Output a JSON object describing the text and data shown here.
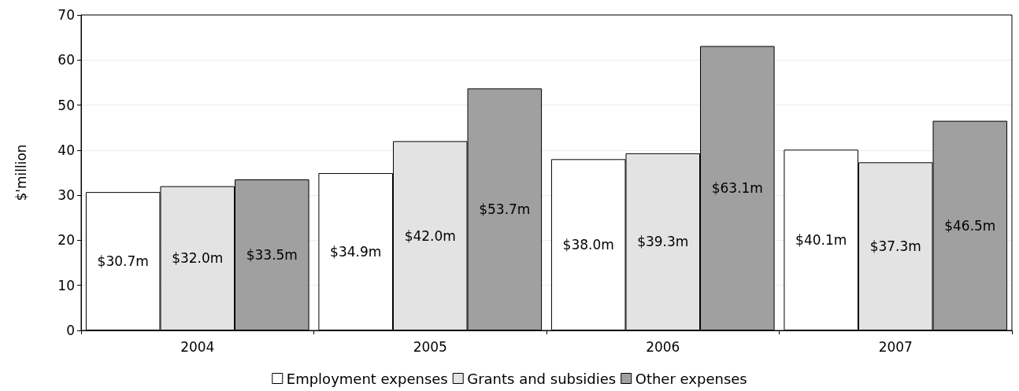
{
  "chart_data": {
    "type": "bar",
    "ylabel": "$'million",
    "categories": [
      "2004",
      "2005",
      "2006",
      "2007"
    ],
    "series": [
      {
        "name": "Employment expenses",
        "color": "#ffffff",
        "values": [
          30.7,
          34.9,
          38.0,
          40.1
        ],
        "value_labels": [
          "$30.7m",
          "$34.9m",
          "$38.0m",
          "$40.1m"
        ]
      },
      {
        "name": "Grants and subsidies",
        "color": "#e3e3e3",
        "values": [
          32.0,
          42.0,
          39.3,
          37.3
        ],
        "value_labels": [
          "$32.0m",
          "$42.0m",
          "$39.3m",
          "$37.3m"
        ]
      },
      {
        "name": "Other expenses",
        "color": "#a0a0a0",
        "values": [
          33.5,
          53.7,
          63.1,
          46.5
        ],
        "value_labels": [
          "$33.5m",
          "$53.7m",
          "$63.1m",
          "$46.5m"
        ]
      }
    ],
    "ylim": [
      0,
      70
    ],
    "yticks": [
      0,
      10,
      20,
      30,
      40,
      50,
      60,
      70
    ],
    "grid": "y",
    "legend": "bottom"
  }
}
